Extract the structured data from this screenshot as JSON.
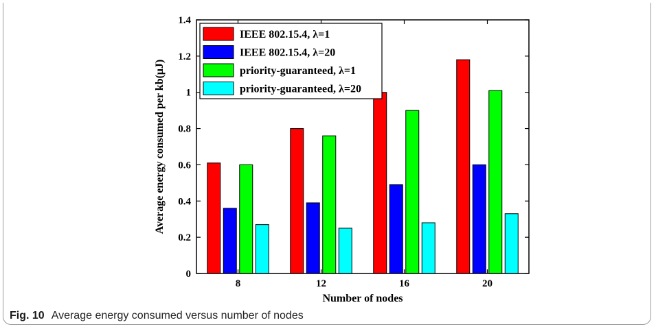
{
  "caption": {
    "label": "Fig. 10",
    "text": "Average energy consumed versus number of nodes"
  },
  "chart_data": {
    "type": "bar",
    "title": "",
    "xlabel": "Number of nodes",
    "ylabel": "Average energy consumed per kb(μJ)",
    "categories": [
      "8",
      "12",
      "16",
      "20"
    ],
    "ylim": [
      0,
      1.4
    ],
    "yticks": [
      0,
      0.2,
      0.4,
      0.6,
      0.8,
      1,
      1.2,
      1.4
    ],
    "ytick_labels": [
      "0",
      "0.2",
      "0.4",
      "0.6",
      "0.8",
      "1",
      "1.2",
      "1.4"
    ],
    "grid": false,
    "legend_position": "top-left",
    "series": [
      {
        "name": "IEEE 802.15.4, λ=1",
        "color": "#ff0000",
        "values": [
          0.61,
          0.8,
          1.0,
          1.18
        ]
      },
      {
        "name": "IEEE 802.15.4, λ=20",
        "color": "#0000ff",
        "values": [
          0.36,
          0.39,
          0.49,
          0.6
        ]
      },
      {
        "name": "priority-guaranteed, λ=1",
        "color": "#00ff00",
        "values": [
          0.6,
          0.76,
          0.9,
          1.01
        ]
      },
      {
        "name": "priority-guaranteed, λ=20",
        "color": "#00ffff",
        "values": [
          0.27,
          0.25,
          0.28,
          0.33
        ]
      }
    ]
  }
}
